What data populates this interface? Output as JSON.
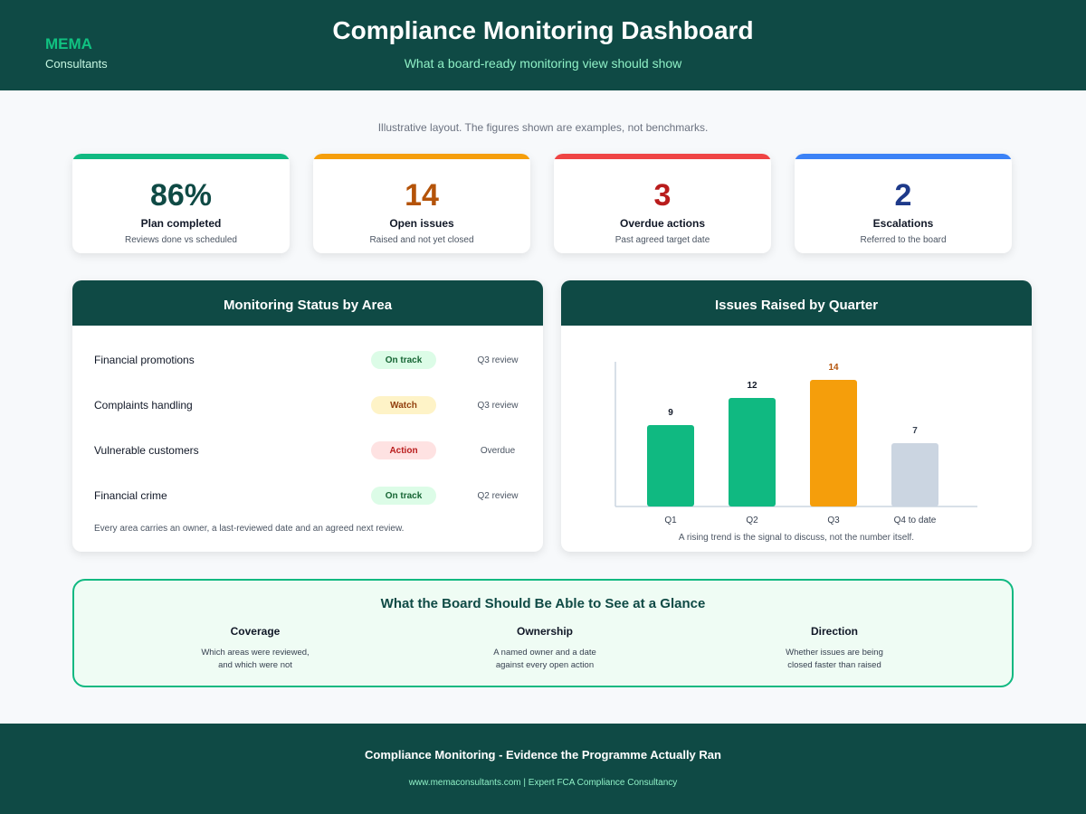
{
  "header": {
    "brand_name": "MEMA",
    "brand_sub": "Consultants",
    "title": "Compliance Monitoring Dashboard",
    "subtitle": "What a board-ready monitoring view should show"
  },
  "disclaimer": "Illustrative layout. The figures shown are examples, not benchmarks.",
  "kpis": [
    {
      "value": "86%",
      "label": "Plan completed",
      "desc": "Reviews done vs scheduled",
      "bar_color": "#10b981",
      "value_color": "#0f4a45"
    },
    {
      "value": "14",
      "label": "Open issues",
      "desc": "Raised and not yet closed",
      "bar_color": "#f59e0b",
      "value_color": "#b45309"
    },
    {
      "value": "3",
      "label": "Overdue actions",
      "desc": "Past agreed target date",
      "bar_color": "#ef4444",
      "value_color": "#b91c1c"
    },
    {
      "value": "2",
      "label": "Escalations",
      "desc": "Referred to the board",
      "bar_color": "#3b82f6",
      "value_color": "#1e3a8a"
    }
  ],
  "status_panel": {
    "title": "Monitoring Status by Area",
    "rows": [
      {
        "area": "Financial promotions",
        "status": "On track",
        "review": "Q3 review"
      },
      {
        "area": "Complaints handling",
        "status": "Watch",
        "review": "Q3 review"
      },
      {
        "area": "Vulnerable customers",
        "status": "Action",
        "review": "Overdue"
      },
      {
        "area": "Financial crime",
        "status": "On track",
        "review": "Q2 review"
      }
    ],
    "status_colors": {
      "On track": {
        "bg": "#dcfce7",
        "fg": "#166534"
      },
      "Watch": {
        "bg": "#fef3c7",
        "fg": "#92400e"
      },
      "Action": {
        "bg": "#fee2e2",
        "fg": "#b91c1c"
      }
    },
    "note": "Every area carries an owner, a last-reviewed date and an agreed next review."
  },
  "chart_panel": {
    "title": "Issues Raised by Quarter",
    "caption": "A rising trend is the signal to discuss, not the number itself."
  },
  "chart_data": {
    "type": "bar",
    "title": "Issues Raised by Quarter",
    "categories": [
      "Q1",
      "Q2",
      "Q3",
      "Q4 to date"
    ],
    "values": [
      9,
      12,
      14,
      7
    ],
    "colors": [
      "#10b981",
      "#10b981",
      "#f59e0b",
      "#cbd5e1"
    ],
    "label_colors": [
      "#111827",
      "#111827",
      "#b45309",
      "#374151"
    ],
    "xlabel": "",
    "ylabel": "",
    "ylim": [
      0,
      16
    ],
    "grid": false
  },
  "glance": {
    "title": "What the Board Should Be Able to See at a Glance",
    "columns": [
      {
        "title": "Coverage",
        "line1": "Which areas were reviewed,",
        "line2": "and which were not"
      },
      {
        "title": "Ownership",
        "line1": "A named owner and a date",
        "line2": "against every open action"
      },
      {
        "title": "Direction",
        "line1": "Whether issues are being",
        "line2": "closed faster than raised"
      }
    ]
  },
  "footer": {
    "title": "Compliance Monitoring - Evidence the Programme Actually Ran",
    "sub": "www.memaconsultants.com | Expert FCA Compliance Consultancy"
  }
}
